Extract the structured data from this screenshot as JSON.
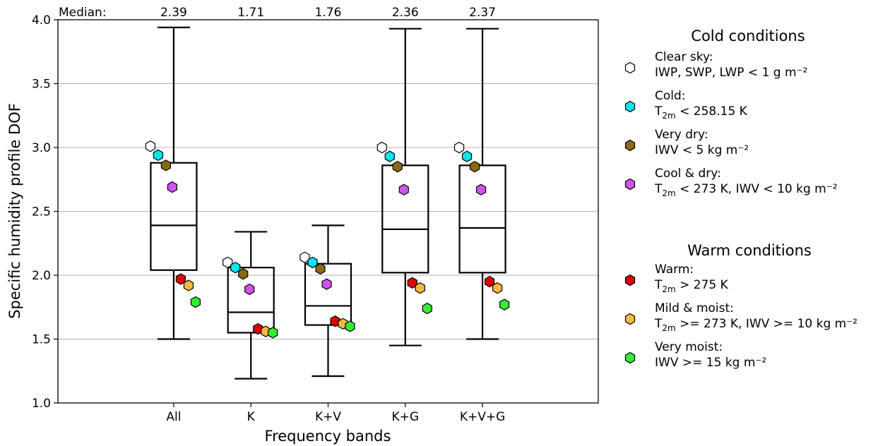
{
  "chart_data": {
    "type": "box",
    "xlabel": "Frequency bands",
    "ylabel": "Specific humidity profile DOF",
    "ylim": [
      1.0,
      4.0
    ],
    "yticks": [
      1.0,
      1.5,
      2.0,
      2.5,
      3.0,
      3.5,
      4.0
    ],
    "ytick_labels": [
      "1.0",
      "1.5",
      "2.0",
      "2.5",
      "3.0",
      "3.5",
      "4.0"
    ],
    "grid": "horizontal",
    "median_label": "Median:",
    "categories": [
      "All",
      "K",
      "K+V",
      "K+G",
      "K+V+G"
    ],
    "medians_text": [
      "2.39",
      "1.71",
      "1.76",
      "2.36",
      "2.37"
    ],
    "boxes": [
      {
        "whisker_low": 1.5,
        "q1": 2.04,
        "median": 2.39,
        "q3": 2.88,
        "whisker_high": 3.94
      },
      {
        "whisker_low": 1.19,
        "q1": 1.55,
        "median": 1.71,
        "q3": 2.06,
        "whisker_high": 2.34
      },
      {
        "whisker_low": 1.21,
        "q1": 1.61,
        "median": 1.76,
        "q3": 2.09,
        "whisker_high": 2.39
      },
      {
        "whisker_low": 1.45,
        "q1": 2.02,
        "median": 2.36,
        "q3": 2.86,
        "whisker_high": 3.93
      },
      {
        "whisker_low": 1.5,
        "q1": 2.02,
        "median": 2.37,
        "q3": 2.86,
        "whisker_high": 3.93
      }
    ],
    "series": [
      {
        "name": "Clear sky",
        "color": "#ffffff",
        "values": [
          3.01,
          2.1,
          2.14,
          3.0,
          3.0
        ]
      },
      {
        "name": "Cold",
        "color": "#00e5ee",
        "values": [
          2.94,
          2.06,
          2.1,
          2.93,
          2.93
        ]
      },
      {
        "name": "Very dry",
        "color": "#8b6914",
        "values": [
          2.86,
          2.01,
          2.05,
          2.85,
          2.85
        ]
      },
      {
        "name": "Cool & dry",
        "color": "#cc55ee",
        "values": [
          2.69,
          1.89,
          1.93,
          2.67,
          2.67
        ]
      },
      {
        "name": "Warm",
        "color": "#dd0000",
        "values": [
          1.97,
          1.58,
          1.64,
          1.94,
          1.95
        ]
      },
      {
        "name": "Mild & moist",
        "color": "#f5b942",
        "values": [
          1.92,
          1.56,
          1.62,
          1.9,
          1.9
        ]
      },
      {
        "name": "Very moist",
        "color": "#33ee33",
        "values": [
          1.79,
          1.55,
          1.6,
          1.74,
          1.77
        ]
      }
    ]
  },
  "legend": {
    "cold_title": "Cold conditions",
    "warm_title": "Warm conditions",
    "cold_items": [
      {
        "series": 0,
        "line1": "Clear sky:",
        "line2": "IWP, SWP, LWP < 1 g m⁻²"
      },
      {
        "series": 1,
        "line1": "Cold:",
        "line2_pre": "T",
        "line2_sub": "2m",
        "line2_post": " < 258.15 K"
      },
      {
        "series": 2,
        "line1": "Very dry:",
        "line2": "IWV < 5 kg m⁻²"
      },
      {
        "series": 3,
        "line1": "Cool & dry:",
        "line2_pre": "T",
        "line2_sub": "2m",
        "line2_post": " < 273 K, IWV < 10 kg m⁻²"
      }
    ],
    "warm_items": [
      {
        "series": 4,
        "line1": "Warm:",
        "line2_pre": "T",
        "line2_sub": "2m",
        "line2_post": " > 275 K"
      },
      {
        "series": 5,
        "line1": "Mild & moist:",
        "line2_pre": "T",
        "line2_sub": "2m",
        "line2_post": " >= 273 K, IWV >= 10 kg m⁻²"
      },
      {
        "series": 6,
        "line1": "Very moist:",
        "line2": "IWV >= 15 kg m⁻²"
      }
    ]
  }
}
